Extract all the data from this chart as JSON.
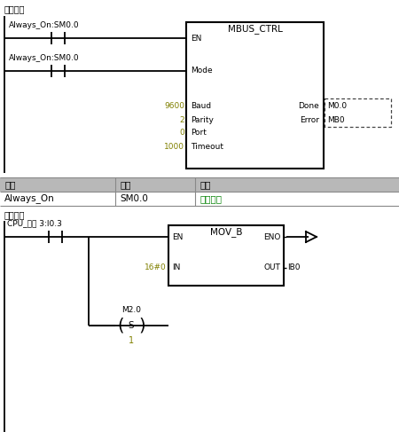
{
  "bg_color": "#ffffff",
  "fig_width": 4.5,
  "fig_height": 4.87,
  "dpi": 100,
  "section1_label": "输入注释",
  "contact1_label": "Always_On:SM0.0",
  "contact2_label": "Always_On:SM0.0",
  "block1_title": "MBUS_CTRL",
  "block1_inputs": [
    "EN",
    "Mode",
    "Baud",
    "Parity",
    "Port",
    "Timeout"
  ],
  "block1_outputs": [
    "Done",
    "Error"
  ],
  "block1_input_vals": [
    "",
    "",
    "9600",
    "2",
    "0",
    "1000"
  ],
  "block1_output_vals": [
    "M0.0",
    "MB0"
  ],
  "table_headers": [
    "符号",
    "地址",
    "注释"
  ],
  "table_row": [
    "Always_On",
    "SM0.0",
    "始终接通"
  ],
  "section2_label": "输入注释",
  "contact3_label": "CPU_输入 3:I0.3",
  "block2_title": "MOV_B",
  "block2_inputs": [
    "EN",
    "IN"
  ],
  "block2_outputs": [
    "ENO",
    "OUT"
  ],
  "block2_input_vals": [
    "",
    "16#0"
  ],
  "block2_output_vals": [
    "",
    "IB0"
  ],
  "coil_label": "M2.0",
  "coil_type": "S",
  "coil_val": "1",
  "text_color_normal": "#000000",
  "text_color_yellow": "#808000",
  "text_color_green": "#008000",
  "line_color": "#000000",
  "table_header_bg": "#b0b0b0",
  "block_border": "#000000"
}
